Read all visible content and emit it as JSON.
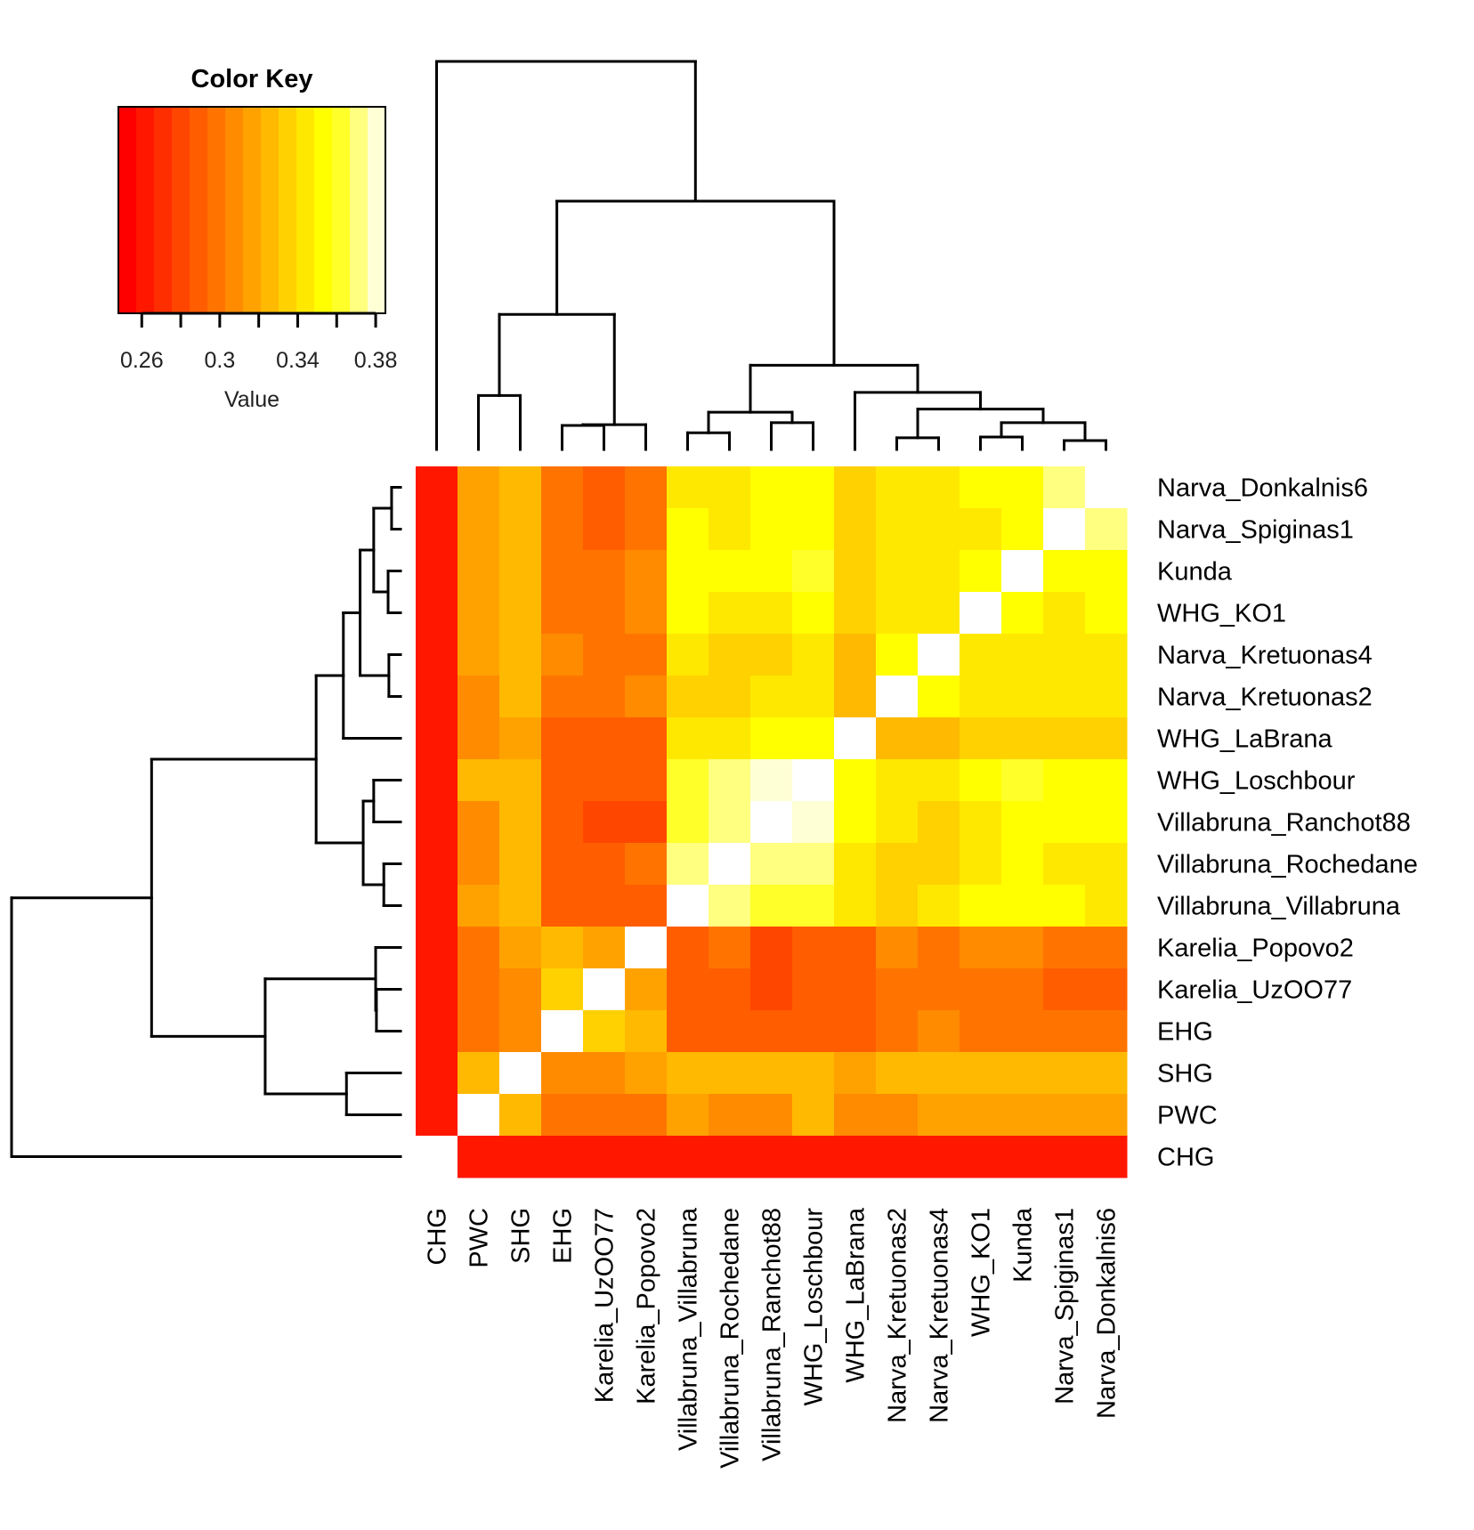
{
  "chart_data": {
    "type": "heatmap",
    "title": "",
    "color_key": {
      "title": "Color Key",
      "xlabel": "Value",
      "range": [
        0.248,
        0.385
      ],
      "ticks": [
        0.26,
        0.28,
        0.3,
        0.32,
        0.34,
        0.36,
        0.38
      ],
      "tick_labels": [
        {
          "value": 0.26,
          "label": "0.26"
        },
        {
          "value": 0.3,
          "label": "0.3"
        },
        {
          "value": 0.34,
          "label": "0.34"
        },
        {
          "value": 0.38,
          "label": "0.38"
        }
      ],
      "palette": [
        "#FF0000",
        "#FF1700",
        "#FF2E00",
        "#FF4600",
        "#FF5D00",
        "#FF7400",
        "#FF8B00",
        "#FFA200",
        "#FFB900",
        "#FFD100",
        "#FFE800",
        "#FFFF00",
        "#FFFF2A",
        "#FFFF80",
        "#FFFFD5"
      ],
      "na_color": "#FFFFFF"
    },
    "columns": [
      "CHG",
      "PWC",
      "SHG",
      "EHG",
      "Karelia_UzOO77",
      "Karelia_Popovo2",
      "Villabruna_Villabruna",
      "Villabruna_Rochedane",
      "Villabruna_Ranchot88",
      "WHG_Loschbour",
      "WHG_LaBrana",
      "Narva_Kretuonas2",
      "Narva_Kretuonas4",
      "WHG_KO1",
      "Kunda",
      "Narva_Spiginas1",
      "Narva_Donkalnis6"
    ],
    "rows": [
      "Narva_Donkalnis6",
      "Narva_Spiginas1",
      "Kunda",
      "WHG_KO1",
      "Narva_Kretuonas4",
      "Narva_Kretuonas2",
      "WHG_LaBrana",
      "WHG_Loschbour",
      "Villabruna_Ranchot88",
      "Villabruna_Rochedane",
      "Villabruna_Villabruna",
      "Karelia_Popovo2",
      "Karelia_UzOO77",
      "EHG",
      "SHG",
      "PWC",
      "CHG"
    ],
    "values": [
      [
        0.262,
        0.316,
        0.325,
        0.298,
        0.289,
        0.298,
        0.344,
        0.344,
        0.353,
        0.353,
        0.335,
        0.344,
        0.344,
        0.353,
        0.353,
        0.371,
        null
      ],
      [
        0.262,
        0.316,
        0.325,
        0.298,
        0.289,
        0.298,
        0.353,
        0.344,
        0.353,
        0.353,
        0.335,
        0.344,
        0.344,
        0.344,
        0.353,
        null,
        0.371
      ],
      [
        0.262,
        0.316,
        0.325,
        0.298,
        0.298,
        0.307,
        0.353,
        0.353,
        0.353,
        0.362,
        0.335,
        0.344,
        0.344,
        0.353,
        null,
        0.353,
        0.353
      ],
      [
        0.262,
        0.316,
        0.325,
        0.298,
        0.298,
        0.307,
        0.353,
        0.344,
        0.344,
        0.353,
        0.335,
        0.344,
        0.344,
        null,
        0.353,
        0.344,
        0.353
      ],
      [
        0.262,
        0.316,
        0.325,
        0.307,
        0.298,
        0.298,
        0.344,
        0.335,
        0.335,
        0.344,
        0.325,
        0.353,
        null,
        0.344,
        0.344,
        0.344,
        0.344
      ],
      [
        0.262,
        0.307,
        0.325,
        0.298,
        0.298,
        0.307,
        0.335,
        0.335,
        0.344,
        0.344,
        0.325,
        null,
        0.353,
        0.344,
        0.344,
        0.344,
        0.344
      ],
      [
        0.262,
        0.307,
        0.316,
        0.289,
        0.289,
        0.289,
        0.344,
        0.344,
        0.353,
        0.353,
        null,
        0.325,
        0.325,
        0.335,
        0.335,
        0.335,
        0.335
      ],
      [
        0.262,
        0.325,
        0.325,
        0.289,
        0.289,
        0.289,
        0.362,
        0.371,
        0.38,
        null,
        0.353,
        0.344,
        0.344,
        0.353,
        0.362,
        0.353,
        0.353
      ],
      [
        0.262,
        0.307,
        0.325,
        0.289,
        0.28,
        0.28,
        0.362,
        0.371,
        null,
        0.38,
        0.353,
        0.344,
        0.335,
        0.344,
        0.353,
        0.353,
        0.353
      ],
      [
        0.262,
        0.307,
        0.325,
        0.289,
        0.289,
        0.298,
        0.371,
        null,
        0.371,
        0.371,
        0.344,
        0.335,
        0.335,
        0.344,
        0.353,
        0.344,
        0.344
      ],
      [
        0.262,
        0.316,
        0.325,
        0.289,
        0.289,
        0.289,
        null,
        0.371,
        0.362,
        0.362,
        0.344,
        0.335,
        0.344,
        0.353,
        0.353,
        0.353,
        0.344
      ],
      [
        0.262,
        0.298,
        0.316,
        0.325,
        0.316,
        null,
        0.289,
        0.298,
        0.28,
        0.289,
        0.289,
        0.307,
        0.298,
        0.307,
        0.307,
        0.298,
        0.298
      ],
      [
        0.262,
        0.298,
        0.307,
        0.335,
        null,
        0.316,
        0.289,
        0.289,
        0.28,
        0.289,
        0.289,
        0.298,
        0.298,
        0.298,
        0.298,
        0.289,
        0.289
      ],
      [
        0.262,
        0.298,
        0.307,
        null,
        0.335,
        0.325,
        0.289,
        0.289,
        0.289,
        0.289,
        0.289,
        0.298,
        0.307,
        0.298,
        0.298,
        0.298,
        0.298
      ],
      [
        0.262,
        0.325,
        null,
        0.307,
        0.307,
        0.316,
        0.325,
        0.325,
        0.325,
        0.325,
        0.316,
        0.325,
        0.325,
        0.325,
        0.325,
        0.325,
        0.325
      ],
      [
        0.262,
        null,
        0.325,
        0.298,
        0.298,
        0.298,
        0.316,
        0.307,
        0.307,
        0.325,
        0.307,
        0.307,
        0.316,
        0.316,
        0.316,
        0.316,
        0.316
      ],
      [
        null,
        0.262,
        0.262,
        0.262,
        0.262,
        0.262,
        0.262,
        0.262,
        0.262,
        0.262,
        0.262,
        0.262,
        0.262,
        0.262,
        0.262,
        0.262,
        0.262
      ]
    ],
    "dendrogram": {
      "h": 1.0,
      "children": [
        "CHG",
        {
          "h": 0.64,
          "children": [
            {
              "h": 0.348,
              "children": [
                {
                  "h": 0.139,
                  "children": [
                    "PWC",
                    "SHG"
                  ]
                },
                {
                  "h": 0.064,
                  "children": [
                    {
                      "h": 0.062,
                      "children": [
                        "EHG",
                        "Karelia_UzOO77"
                      ]
                    },
                    "Karelia_Popovo2"
                  ]
                }
              ]
            },
            {
              "h": 0.217,
              "children": [
                {
                  "h": 0.096,
                  "children": [
                    {
                      "h": 0.043,
                      "children": [
                        "Villabruna_Villabruna",
                        "Villabruna_Rochedane"
                      ]
                    },
                    {
                      "h": 0.069,
                      "children": [
                        "Villabruna_Ranchot88",
                        "WHG_Loschbour"
                      ]
                    }
                  ]
                },
                {
                  "h": 0.147,
                  "children": [
                    "WHG_LaBrana",
                    {
                      "h": 0.104,
                      "children": [
                        {
                          "h": 0.03,
                          "children": [
                            "Narva_Kretuonas2",
                            "Narva_Kretuonas4"
                          ]
                        },
                        {
                          "h": 0.069,
                          "children": [
                            {
                              "h": 0.032,
                              "children": [
                                "WHG_KO1",
                                "Kunda"
                              ]
                            },
                            {
                              "h": 0.023,
                              "children": [
                                "Narva_Spiginas1",
                                "Narva_Donkalnis6"
                              ]
                            }
                          ]
                        }
                      ]
                    }
                  ]
                }
              ]
            }
          ]
        }
      ]
    }
  }
}
